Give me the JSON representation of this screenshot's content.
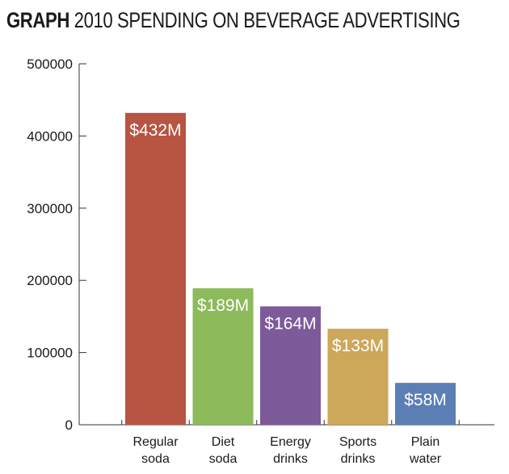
{
  "header": {
    "keyword": "GRAPH",
    "title": "2010 SPENDING ON BEVERAGE ADVERTISING"
  },
  "chart_data": {
    "type": "bar",
    "categories": [
      [
        "Regular",
        "soda"
      ],
      [
        "Diet",
        "soda"
      ],
      [
        "Energy",
        "drinks"
      ],
      [
        "Sports",
        "drinks"
      ],
      [
        "Plain",
        "water"
      ]
    ],
    "values": [
      432000,
      189000,
      164000,
      133000,
      58000
    ],
    "data_labels": [
      "$432M",
      "$189M",
      "$164M",
      "$133M",
      "$58M"
    ],
    "colors": [
      "#b85442",
      "#8dba5a",
      "#7d5a9a",
      "#cda75a",
      "#5b7fb5"
    ],
    "ylim": [
      0,
      500000
    ],
    "yticks": [
      0,
      100000,
      200000,
      300000,
      400000,
      500000
    ],
    "ytick_labels": [
      "0",
      "100000",
      "200000",
      "300000",
      "400000",
      "500000"
    ],
    "xlabel": "",
    "ylabel": "",
    "grid": false
  }
}
